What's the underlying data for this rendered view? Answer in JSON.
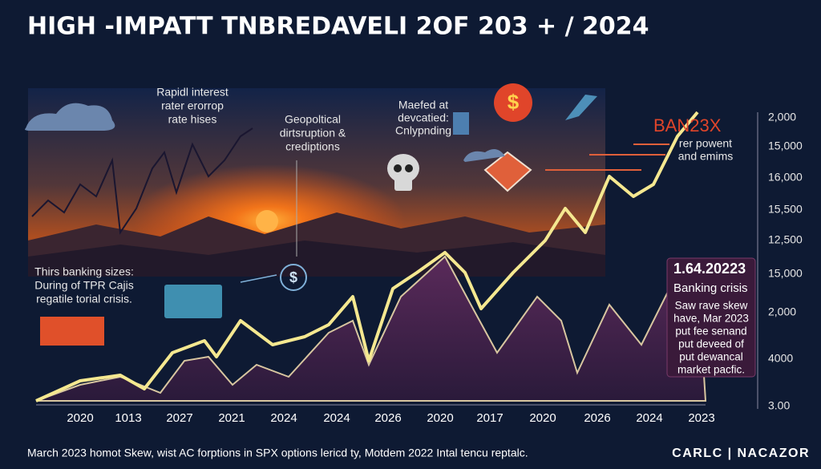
{
  "header": {
    "title": "HIGH -IMPATT TNBREDAVELI 2OF 203 + / 2024"
  },
  "annotations": {
    "rates": [
      "Rapidl interest",
      "rater erorrop",
      "rate hises"
    ],
    "geopolitical": [
      "Geopoltical",
      "dirtsruption &",
      "crediptions"
    ],
    "market": [
      "Maefed at",
      "devcatied:",
      "Cnlypnding"
    ],
    "ban": "BAN23X",
    "power": [
      "rer powent",
      "and emims"
    ],
    "banking_left": [
      "Thirs banking sizes:",
      "During of TPR Cajis",
      "regatile torial crisis."
    ],
    "banking_box": {
      "date": "1.64.20223",
      "heading": "Banking crisis",
      "body": [
        "Saw rave skew",
        "have, Mar 2023",
        "put fee senand",
        "put deveed of",
        "put dewancal",
        "market pacfic."
      ]
    }
  },
  "y_axis_labels": [
    "2,000",
    "15,000",
    "16,000",
    "15,500",
    "12,500",
    "15,000",
    "2,000",
    "4000",
    "3.00"
  ],
  "x_axis_labels": [
    "2020",
    "1013",
    "2027",
    "2021",
    "2024",
    "2024",
    "2026",
    "2020",
    "2017",
    "2020",
    "2026",
    "2024",
    "2023"
  ],
  "footer": {
    "note": "March 2023 homot Skew, wist AC forptions in SPX options lericd ty, Motdem 2022 Intal tencu reptalc.",
    "brand": "CARLC | NACAZOR"
  }
}
